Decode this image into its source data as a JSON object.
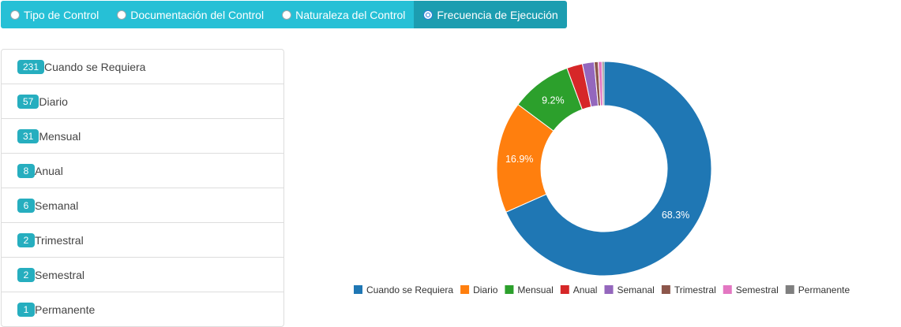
{
  "tabs": [
    {
      "label": "Tipo de Control",
      "active": false
    },
    {
      "label": "Documentación del Control",
      "active": false
    },
    {
      "label": "Naturaleza del Control",
      "active": false
    },
    {
      "label": "Frecuencia de Ejecución",
      "active": true
    }
  ],
  "list": [
    {
      "count": "231",
      "label": "Cuando se Requiera"
    },
    {
      "count": "57",
      "label": "Diario"
    },
    {
      "count": "31",
      "label": "Mensual"
    },
    {
      "count": "8",
      "label": "Anual"
    },
    {
      "count": "6",
      "label": "Semanal"
    },
    {
      "count": "2",
      "label": "Trimestral"
    },
    {
      "count": "2",
      "label": "Semestral"
    },
    {
      "count": "1",
      "label": "Permanente"
    }
  ],
  "chart_data": {
    "type": "pie",
    "donut": true,
    "categories": [
      "Cuando se Requiera",
      "Diario",
      "Mensual",
      "Anual",
      "Semanal",
      "Trimestral",
      "Semestral",
      "Permanente"
    ],
    "values": [
      231,
      57,
      31,
      8,
      6,
      2,
      2,
      1
    ],
    "colors": [
      "#1f77b4",
      "#ff7f0e",
      "#2ca02c",
      "#d62728",
      "#9467bd",
      "#8c564b",
      "#e377c2",
      "#7f7f7f"
    ],
    "slice_labels": [
      "68.3%",
      "16.9%",
      "9.2%",
      "",
      "",
      "",
      "",
      ""
    ],
    "legend_position": "bottom"
  }
}
